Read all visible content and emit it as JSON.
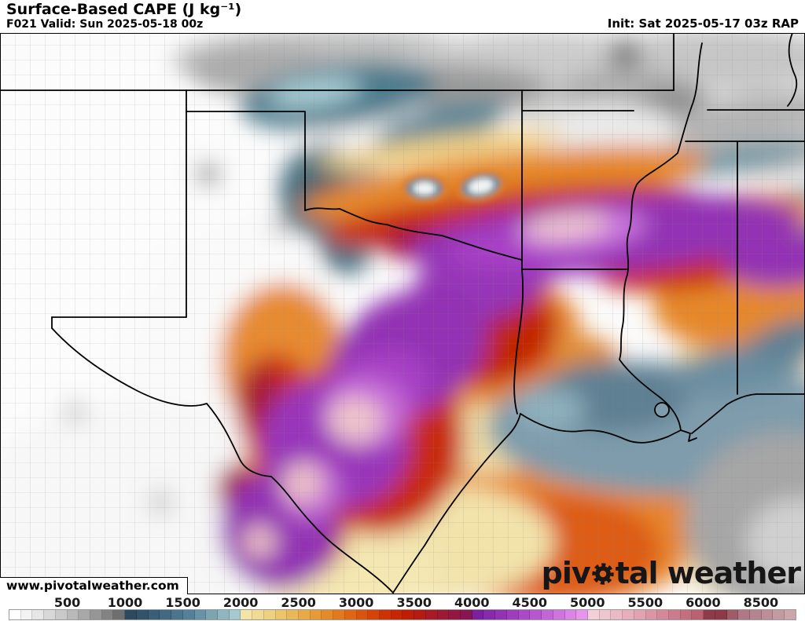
{
  "header": {
    "title": "Surface-Based CAPE (J kg⁻¹)",
    "subtitle": "F021 Valid: Sun 2025-05-18 00z",
    "init": "Init: Sat 2025-05-17 03z RAP"
  },
  "watermark": "www.pivotalweather.com",
  "logo": {
    "part1": "piv",
    "part2": "tal weather",
    "gear_icon": "gear-icon"
  },
  "colorbar": {
    "units": "J kg⁻¹",
    "total_cells": 68,
    "hatch_start_index": 60,
    "cells": [
      "#ffffff",
      "#f3f3f3",
      "#e6e6e6",
      "#d8d8d8",
      "#c9c9c9",
      "#b9b9b9",
      "#a8a8a8",
      "#969696",
      "#838383",
      "#6f6f6f",
      "#2b4a5f",
      "#32546b",
      "#3a5e77",
      "#426983",
      "#4b748f",
      "#55809b",
      "#6892a7",
      "#7ca4b3",
      "#90b6bf",
      "#a6c9d1",
      "#f3e5a5",
      "#f1db92",
      "#efd07e",
      "#edc46a",
      "#ebb757",
      "#e9a945",
      "#e79a36",
      "#e58a29",
      "#e2791d",
      "#df6714",
      "#db540d",
      "#d64208",
      "#d03104",
      "#c82503",
      "#bf1d06",
      "#b51b14",
      "#aa1a24",
      "#9f1834",
      "#941743",
      "#891652",
      "#7c1fa2",
      "#8828ab",
      "#9432b4",
      "#a03dbd",
      "#ac49c6",
      "#b856cf",
      "#c464d8",
      "#d073e0",
      "#dc83e8",
      "#e794ef",
      "#f3d0d8",
      "#efc5cf",
      "#ebbac5",
      "#e7aebb",
      "#e3a2b1",
      "#dc95a5",
      "#d48898",
      "#cc7b8b",
      "#c46e7e",
      "#bc6171",
      "#8f3a48",
      "#8d3a47",
      "#a05b67",
      "#b07884",
      "#b68490",
      "#bd8e98",
      "#c49aa2",
      "#cba6ab"
    ],
    "ticks": [
      {
        "label": "500",
        "boundary": 5
      },
      {
        "label": "1000",
        "boundary": 10
      },
      {
        "label": "1500",
        "boundary": 15
      },
      {
        "label": "2000",
        "boundary": 20
      },
      {
        "label": "2500",
        "boundary": 25
      },
      {
        "label": "3000",
        "boundary": 30
      },
      {
        "label": "3500",
        "boundary": 35
      },
      {
        "label": "4000",
        "boundary": 40
      },
      {
        "label": "4500",
        "boundary": 45
      },
      {
        "label": "5000",
        "boundary": 50
      },
      {
        "label": "5500",
        "boundary": 55
      },
      {
        "label": "6000",
        "boundary": 60
      },
      {
        "label": "8500",
        "boundary": 65
      }
    ]
  },
  "map": {
    "palette": {
      "low_gray": "#bdbdbd",
      "teal": "#4e7b8d",
      "yellow": "#efd083",
      "orange": "#e6882b",
      "red": "#ca2b07",
      "crimson": "#a5183a",
      "purple": "#9331b4",
      "orchid": "#cb74dd",
      "pink_core": "#efc7cf",
      "coastal_blue": "#7e9cac",
      "gulf_cream": "#f2e3ab",
      "border": "#000000"
    }
  }
}
